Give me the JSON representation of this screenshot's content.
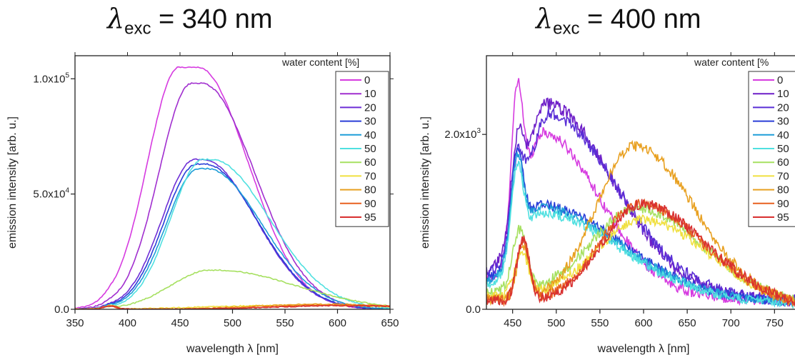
{
  "panels": [
    {
      "title_symbol": "λ",
      "title_sub": "exc",
      "title_rest": " = 340 nm",
      "chart_data": {
        "type": "line",
        "xlabel": "wavelength λ [nm]",
        "ylabel": "emission intensity [arb. u.]",
        "xlim": [
          350,
          650
        ],
        "ylim": [
          0,
          110000
        ],
        "xticks": [
          350,
          400,
          450,
          500,
          550,
          600,
          650
        ],
        "yticks": [
          {
            "value": 0,
            "base": "0.0",
            "exp": ""
          },
          {
            "value": 50000,
            "base": "5.0x10",
            "exp": "4"
          },
          {
            "value": 100000,
            "base": "1.0x10",
            "exp": "5"
          }
        ],
        "legend_title": "water content [%]",
        "legend_position": "top-right",
        "series": [
          {
            "name": "0",
            "color": "#d63be0",
            "shape": "gauss",
            "peak": 105000,
            "center": 458,
            "sigma_left": 30,
            "sigma_right": 48,
            "flat": 18
          },
          {
            "name": "10",
            "color": "#a12fcf",
            "shape": "gauss",
            "peak": 98000,
            "center": 466,
            "sigma_left": 31,
            "sigma_right": 50,
            "flat": 10
          },
          {
            "name": "20",
            "color": "#6e2ed6",
            "shape": "gauss",
            "peak": 65000,
            "center": 468,
            "sigma_left": 31,
            "sigma_right": 50,
            "flat": 8
          },
          {
            "name": "30",
            "color": "#2a3fd8",
            "shape": "gauss",
            "peak": 63000,
            "center": 470,
            "sigma_left": 31,
            "sigma_right": 50,
            "flat": 8
          },
          {
            "name": "40",
            "color": "#1f9ed8",
            "shape": "gauss",
            "peak": 61000,
            "center": 472,
            "sigma_left": 31,
            "sigma_right": 52,
            "flat": 8
          },
          {
            "name": "50",
            "color": "#4fe0e0",
            "shape": "gauss",
            "peak": 65000,
            "center": 476,
            "sigma_left": 31,
            "sigma_right": 55,
            "flat": 8
          },
          {
            "name": "60",
            "color": "#a6e060",
            "shape": "gauss",
            "peak": 17000,
            "center": 482,
            "sigma_left": 38,
            "sigma_right": 75,
            "flat": 6
          },
          {
            "name": "70",
            "color": "#f0e040",
            "shape": "gauss",
            "peak": 1800,
            "center": 560,
            "sigma_left": 80,
            "sigma_right": 90,
            "flat": 0
          },
          {
            "name": "80",
            "color": "#e8a020",
            "shape": "gauss",
            "peak": 2200,
            "center": 580,
            "sigma_left": 60,
            "sigma_right": 80,
            "flat": 0
          },
          {
            "name": "90",
            "color": "#e86020",
            "shape": "gauss",
            "peak": 1800,
            "center": 595,
            "sigma_left": 60,
            "sigma_right": 70,
            "flat": 0
          },
          {
            "name": "95",
            "color": "#d83030",
            "shape": "gauss",
            "peak": 1600,
            "center": 600,
            "sigma_left": 60,
            "sigma_right": 70,
            "flat": 0
          }
        ]
      }
    },
    {
      "title_symbol": "λ",
      "title_sub": "exc",
      "title_rest": " = 400 nm",
      "chart_data": {
        "type": "line",
        "xlabel": "wavelength λ [nm]",
        "ylabel": "emission intensity [arb. u.]",
        "xlim": [
          420,
          780
        ],
        "ylim": [
          0,
          2900
        ],
        "xticks": [
          450,
          500,
          550,
          600,
          650,
          700,
          750
        ],
        "yticks": [
          {
            "value": 0,
            "base": "0.0",
            "exp": ""
          },
          {
            "value": 2000,
            "base": "2.0x10",
            "exp": "3"
          }
        ],
        "legend_title": "water content [%",
        "legend_position": "top-right",
        "series": [
          {
            "name": "0",
            "color": "#d63be0",
            "shape": "mix",
            "baseline": 350,
            "sharp": {
              "center": 455,
              "amp": 1700,
              "sigma": 7
            },
            "broad": {
              "center": 485,
              "amp": 1750,
              "sigma_left": 20,
              "sigma_right": 65
            },
            "noise": 60
          },
          {
            "name": "10",
            "color": "#6e1fc8",
            "shape": "mix",
            "baseline": 400,
            "sharp": {
              "center": 455,
              "amp": 900,
              "sigma": 7
            },
            "broad": {
              "center": 490,
              "amp": 2050,
              "sigma_left": 25,
              "sigma_right": 75
            },
            "noise": 70
          },
          {
            "name": "20",
            "color": "#5a2fd6",
            "shape": "mix",
            "baseline": 380,
            "sharp": {
              "center": 455,
              "amp": 800,
              "sigma": 7
            },
            "broad": {
              "center": 492,
              "amp": 1950,
              "sigma_left": 25,
              "sigma_right": 78
            },
            "noise": 70
          },
          {
            "name": "30",
            "color": "#2a3fd8",
            "shape": "mix",
            "baseline": 320,
            "sharp": {
              "center": 455,
              "amp": 1100,
              "sigma": 7
            },
            "broad": {
              "center": 485,
              "amp": 950,
              "sigma_left": 25,
              "sigma_right": 90
            },
            "noise": 55
          },
          {
            "name": "40",
            "color": "#1f9ed8",
            "shape": "mix",
            "baseline": 300,
            "sharp": {
              "center": 455,
              "amp": 1050,
              "sigma": 7
            },
            "broad": {
              "center": 485,
              "amp": 930,
              "sigma_left": 25,
              "sigma_right": 90
            },
            "noise": 55
          },
          {
            "name": "50",
            "color": "#4fe0e0",
            "shape": "mix",
            "baseline": 260,
            "sharp": {
              "center": 455,
              "amp": 1000,
              "sigma": 7
            },
            "broad": {
              "center": 485,
              "amp": 900,
              "sigma_left": 25,
              "sigma_right": 90
            },
            "noise": 55
          },
          {
            "name": "60",
            "color": "#a6e060",
            "shape": "mix",
            "baseline": 200,
            "sharp": {
              "center": 458,
              "amp": 700,
              "sigma": 8
            },
            "broad": {
              "center": 595,
              "amp": 1050,
              "sigma_left": 55,
              "sigma_right": 75
            },
            "noise": 60
          },
          {
            "name": "70",
            "color": "#f0e040",
            "shape": "mix",
            "baseline": 150,
            "sharp": {
              "center": 460,
              "amp": 500,
              "sigma": 8
            },
            "broad": {
              "center": 600,
              "amp": 950,
              "sigma_left": 55,
              "sigma_right": 75
            },
            "noise": 55
          },
          {
            "name": "80",
            "color": "#e8a020",
            "shape": "mix",
            "baseline": 120,
            "sharp": {
              "center": 462,
              "amp": 600,
              "sigma": 7
            },
            "broad": {
              "center": 590,
              "amp": 1800,
              "sigma_left": 45,
              "sigma_right": 70
            },
            "noise": 60
          },
          {
            "name": "90",
            "color": "#e86020",
            "shape": "mix",
            "baseline": 110,
            "sharp": {
              "center": 462,
              "amp": 700,
              "sigma": 7
            },
            "broad": {
              "center": 595,
              "amp": 1150,
              "sigma_left": 45,
              "sigma_right": 75
            },
            "noise": 60
          },
          {
            "name": "95",
            "color": "#d83030",
            "shape": "mix",
            "baseline": 110,
            "sharp": {
              "center": 462,
              "amp": 700,
              "sigma": 7
            },
            "broad": {
              "center": 598,
              "amp": 1150,
              "sigma_left": 45,
              "sigma_right": 75
            },
            "noise": 60
          }
        ]
      }
    }
  ]
}
